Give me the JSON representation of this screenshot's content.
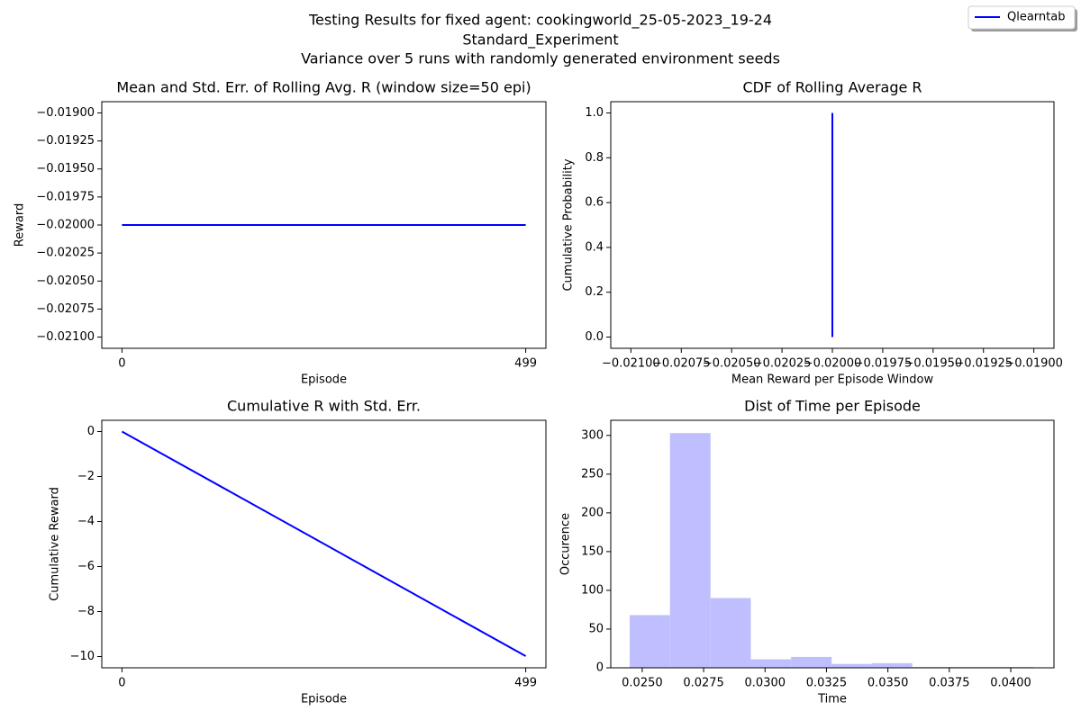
{
  "title": [
    "Testing Results for fixed agent: cookingworld_25-05-2023_19-24",
    "Standard_Experiment",
    "Variance over 5 runs with randomly generated environment seeds"
  ],
  "chart_data": [
    {
      "type": "line",
      "title": "Mean and Std. Err. of Rolling Avg. R (window size=50 epi)",
      "x_label": "Episode",
      "y_label": "Reward",
      "x": [
        0,
        499
      ],
      "series": [
        {
          "name": "Qlearntab",
          "color": "#0000ff",
          "values": [
            -0.02,
            -0.02
          ]
        }
      ],
      "xlim": [
        -24.95,
        523.95
      ],
      "xticks": [
        0,
        499
      ],
      "ylim": [
        -0.0211,
        -0.0189
      ],
      "yticks": [
        {
          "value": -0.019,
          "label": "−0.01900"
        },
        {
          "value": -0.01925,
          "label": "−0.01925"
        },
        {
          "value": -0.0195,
          "label": "−0.01950"
        },
        {
          "value": -0.01975,
          "label": "−0.01975"
        },
        {
          "value": -0.02,
          "label": "−0.02000"
        },
        {
          "value": -0.02025,
          "label": "−0.02025"
        },
        {
          "value": -0.0205,
          "label": "−0.02050"
        },
        {
          "value": -0.02075,
          "label": "−0.02075"
        },
        {
          "value": -0.021,
          "label": "−0.02100"
        }
      ]
    },
    {
      "type": "line",
      "title": "CDF of Rolling Average R",
      "x_label": "Mean Reward per Episode Window",
      "y_label": "Cumulative Probability",
      "x": [
        -0.02,
        -0.02
      ],
      "series": [
        {
          "color": "#0000ff",
          "values": [
            0,
            1
          ]
        }
      ],
      "xlim": [
        -0.0211,
        -0.0189
      ],
      "xticks": [
        {
          "value": -0.021,
          "label": "−0.02100"
        },
        {
          "value": -0.02075,
          "label": "−0.02075"
        },
        {
          "value": -0.0205,
          "label": "−0.02050"
        },
        {
          "value": -0.02025,
          "label": "−0.02025"
        },
        {
          "value": -0.02,
          "label": "−0.02000"
        },
        {
          "value": -0.01975,
          "label": "−0.01975"
        },
        {
          "value": -0.0195,
          "label": "−0.01950"
        },
        {
          "value": -0.01925,
          "label": "−0.01925"
        },
        {
          "value": -0.019,
          "label": "−0.01900"
        }
      ],
      "ylim": [
        -0.05,
        1.05
      ],
      "yticks": [
        {
          "value": 0,
          "label": "0.0"
        },
        0.2,
        0.4,
        0.6,
        0.8,
        {
          "value": 1,
          "label": "1.0"
        }
      ]
    },
    {
      "type": "line",
      "title": "Cumulative R with Std. Err.",
      "x_label": "Episode",
      "y_label": "Cumulative Reward",
      "x": [
        0,
        499
      ],
      "series": [
        {
          "color": "#0000ff",
          "values": [
            0,
            -9.98
          ]
        }
      ],
      "xlim": [
        -24.95,
        523.95
      ],
      "xticks": [
        0,
        499
      ],
      "ylim": [
        -10.5,
        0.5
      ],
      "yticks": [
        0,
        {
          "value": -2,
          "label": "−2"
        },
        {
          "value": -4,
          "label": "−4"
        },
        {
          "value": -6,
          "label": "−6"
        },
        {
          "value": -8,
          "label": "−8"
        },
        {
          "value": -10,
          "label": "−10"
        }
      ]
    },
    {
      "type": "histogram",
      "title": "Dist of Time per Episode",
      "x_label": "Time",
      "y_label": "Occurence",
      "bins": [
        0.02449,
        0.02613,
        0.02778,
        0.02942,
        0.03106,
        0.03271,
        0.03435,
        0.03599,
        0.03764,
        0.03928,
        0.04092
      ],
      "values": [
        68,
        303,
        90,
        11,
        14,
        5,
        6,
        1,
        1,
        1
      ],
      "color": "#bfbfff",
      "xlim": [
        0.02372,
        0.04176
      ],
      "xticks": [
        {
          "value": 0.025,
          "label": "0.0250"
        },
        {
          "value": 0.0275,
          "label": "0.0275"
        },
        {
          "value": 0.03,
          "label": "0.0300"
        },
        {
          "value": 0.0325,
          "label": "0.0325"
        },
        {
          "value": 0.035,
          "label": "0.0350"
        },
        {
          "value": 0.0375,
          "label": "0.0375"
        },
        {
          "value": 0.04,
          "label": "0.0400"
        }
      ],
      "ylim": [
        0,
        319.5
      ],
      "yticks": [
        0,
        50,
        100,
        150,
        200,
        250,
        300
      ]
    }
  ]
}
